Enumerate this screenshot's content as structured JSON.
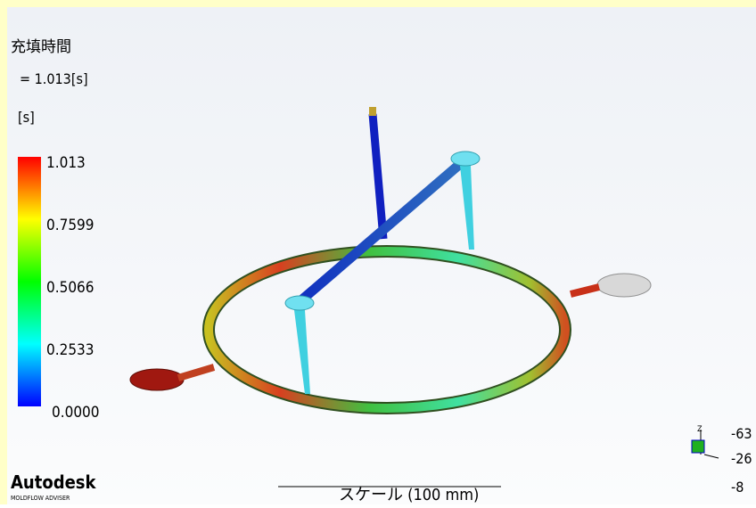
{
  "header": {
    "title": "充填時間",
    "value": "= 1.013[s]",
    "unit": "[s]"
  },
  "legend": {
    "labels": [
      "1.013",
      "0.7599",
      "0.5066",
      "0.2533",
      "0.0000"
    ]
  },
  "logo": {
    "name": "Autodesk",
    "product": "MOLDFLOW ADVISER"
  },
  "scale": {
    "label": "スケール (100 mm)"
  },
  "triad": {
    "labels": [
      "Z",
      "-63",
      "-26",
      "-8"
    ]
  }
}
